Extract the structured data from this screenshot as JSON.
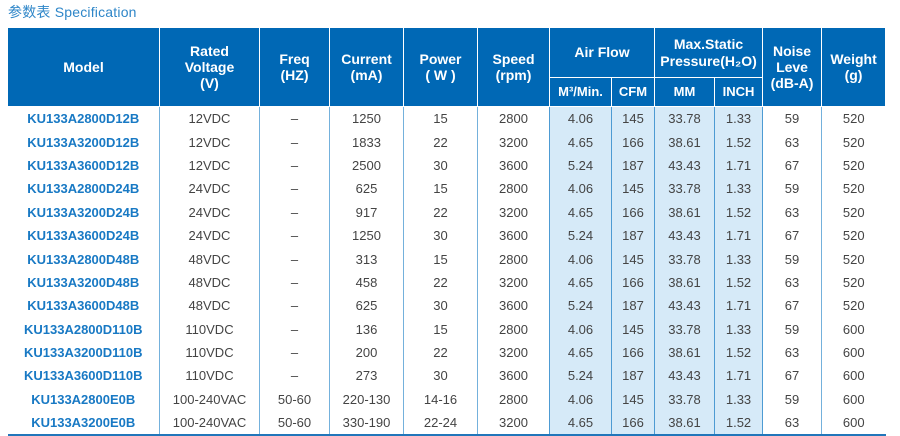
{
  "page_title": "参数表 Specification",
  "colors": {
    "header_bg": "#0068b5",
    "header_text": "#ffffff",
    "title_text": "#2e86c8",
    "model_text": "#1879c4",
    "shaded_cell_bg": "#d6eaf8",
    "grid_line": "#74b1dc",
    "shaded_grid_line": "#4d9bd3",
    "bottom_rule": "#2176ba",
    "body_text": "#444444"
  },
  "table": {
    "header": {
      "model": "Model",
      "rated_voltage": "Rated\nVoltage\n(V)",
      "freq": "Freq\n(HZ)",
      "current": "Current\n(mA)",
      "power": "Power\n( W )",
      "speed": "Speed\n(rpm)",
      "air_flow": "Air Flow",
      "air_flow_m3": "M³/Min.",
      "air_flow_cfm": "CFM",
      "max_static_pressure": "Max.Static\nPressure(H₂O)",
      "pressure_mm": "MM",
      "pressure_inch": "INCH",
      "noise": "Noise\nLeve\n(dB-A)",
      "weight": "Weight\n(g)"
    },
    "columns_order": [
      "model",
      "rated_voltage_v",
      "freq_hz",
      "current_ma",
      "power_w",
      "speed_rpm",
      "air_flow_m3_min",
      "air_flow_cfm",
      "pressure_mm",
      "pressure_inch",
      "noise_dba",
      "weight_g"
    ],
    "rows": [
      [
        "KU133A2800D12B",
        "12VDC",
        "–",
        "1250",
        "15",
        "2800",
        "4.06",
        "145",
        "33.78",
        "1.33",
        "59",
        "520"
      ],
      [
        "KU133A3200D12B",
        "12VDC",
        "–",
        "1833",
        "22",
        "3200",
        "4.65",
        "166",
        "38.61",
        "1.52",
        "63",
        "520"
      ],
      [
        "KU133A3600D12B",
        "12VDC",
        "–",
        "2500",
        "30",
        "3600",
        "5.24",
        "187",
        "43.43",
        "1.71",
        "67",
        "520"
      ],
      [
        "KU133A2800D24B",
        "24VDC",
        "–",
        "625",
        "15",
        "2800",
        "4.06",
        "145",
        "33.78",
        "1.33",
        "59",
        "520"
      ],
      [
        "KU133A3200D24B",
        "24VDC",
        "–",
        "917",
        "22",
        "3200",
        "4.65",
        "166",
        "38.61",
        "1.52",
        "63",
        "520"
      ],
      [
        "KU133A3600D24B",
        "24VDC",
        "–",
        "1250",
        "30",
        "3600",
        "5.24",
        "187",
        "43.43",
        "1.71",
        "67",
        "520"
      ],
      [
        "KU133A2800D48B",
        "48VDC",
        "–",
        "313",
        "15",
        "2800",
        "4.06",
        "145",
        "33.78",
        "1.33",
        "59",
        "520"
      ],
      [
        "KU133A3200D48B",
        "48VDC",
        "–",
        "458",
        "22",
        "3200",
        "4.65",
        "166",
        "38.61",
        "1.52",
        "63",
        "520"
      ],
      [
        "KU133A3600D48B",
        "48VDC",
        "–",
        "625",
        "30",
        "3600",
        "5.24",
        "187",
        "43.43",
        "1.71",
        "67",
        "520"
      ],
      [
        "KU133A2800D110B",
        "110VDC",
        "–",
        "136",
        "15",
        "2800",
        "4.06",
        "145",
        "33.78",
        "1.33",
        "59",
        "600"
      ],
      [
        "KU133A3200D110B",
        "110VDC",
        "–",
        "200",
        "22",
        "3200",
        "4.65",
        "166",
        "38.61",
        "1.52",
        "63",
        "600"
      ],
      [
        "KU133A3600D110B",
        "110VDC",
        "–",
        "273",
        "30",
        "3600",
        "5.24",
        "187",
        "43.43",
        "1.71",
        "67",
        "600"
      ],
      [
        "KU133A2800E0B",
        "100-240VAC",
        "50-60",
        "220-130",
        "14-16",
        "2800",
        "4.06",
        "145",
        "33.78",
        "1.33",
        "59",
        "600"
      ],
      [
        "KU133A3200E0B",
        "100-240VAC",
        "50-60",
        "330-190",
        "22-24",
        "3200",
        "4.65",
        "166",
        "38.61",
        "1.52",
        "63",
        "600"
      ]
    ]
  }
}
